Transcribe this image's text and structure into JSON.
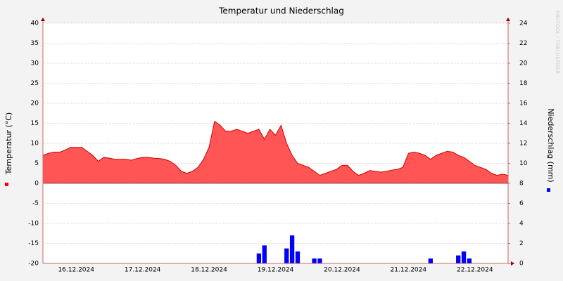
{
  "chart_data": {
    "type": "area",
    "title": "Temperatur und Niederschlag",
    "ylabel": "Temperatur (°C)",
    "y2label": "Niederschlag (mm)",
    "watermark": "RRDTOOL / TOBI OETIKER",
    "categories": [
      null,
      null,
      null,
      null,
      null,
      null,
      "16.12.2024",
      null,
      null,
      null,
      null,
      null,
      null,
      null,
      null,
      null,
      null,
      null,
      "17.12.2024",
      null,
      null,
      null,
      null,
      null,
      null,
      null,
      null,
      null,
      null,
      null,
      "18.12.2024",
      null,
      null,
      null,
      null,
      null,
      null,
      null,
      null,
      null,
      null,
      null,
      "19.12.2024",
      null,
      null,
      null,
      null,
      null,
      null,
      null,
      null,
      null,
      null,
      null,
      "20.12.2024",
      null,
      null,
      null,
      null,
      null,
      null,
      null,
      null,
      null,
      null,
      null,
      "21.12.2024",
      null,
      null,
      null,
      null,
      null,
      null,
      null,
      null,
      null,
      null,
      null,
      "22.12.2024",
      null,
      null,
      null,
      null,
      null,
      null
    ],
    "series": [
      {
        "type": "area",
        "axis": "y",
        "color": "#ff5555",
        "line_color": "#cc0000",
        "values": [
          7,
          7.5,
          7.8,
          7.8,
          8.3,
          9,
          9,
          9,
          8,
          7,
          5.5,
          6.5,
          6.3,
          6,
          6,
          6,
          5.8,
          6.2,
          6.5,
          6.5,
          6.3,
          6.2,
          6,
          5.5,
          4.5,
          3,
          2.5,
          3,
          4,
          6,
          9,
          15.5,
          14.5,
          13,
          13,
          13.5,
          13,
          12.5,
          13,
          13.5,
          11,
          13.5,
          12,
          14.5,
          10,
          7,
          5,
          4.5,
          4,
          3,
          2,
          2.5,
          3,
          3.5,
          4.5,
          4.5,
          3,
          2,
          2.5,
          3.2,
          3,
          2.8,
          3,
          3.3,
          3.5,
          4,
          7.5,
          7.8,
          7.5,
          7,
          6,
          7,
          7.5,
          8,
          7.8,
          7,
          6.5,
          5.5,
          4.5,
          4,
          3.5,
          2.5,
          2,
          2.3,
          2
        ]
      },
      {
        "type": "bar",
        "axis": "y2",
        "color": "#0000ff",
        "values": [
          0,
          0,
          0,
          0,
          0,
          0,
          0,
          0,
          0,
          0,
          0,
          0,
          0,
          0,
          0,
          0,
          0,
          0,
          0,
          0,
          0,
          0,
          0,
          0,
          0,
          0,
          0,
          0,
          0,
          0,
          0,
          0,
          0,
          0,
          0,
          0,
          0,
          0,
          0,
          1,
          1.8,
          0,
          0,
          0,
          1.5,
          2.8,
          1.2,
          0,
          0,
          0.5,
          0.5,
          0,
          0,
          0,
          0,
          0,
          0,
          0,
          0,
          0,
          0,
          0,
          0,
          0,
          0,
          0,
          0,
          0,
          0,
          0,
          0.5,
          0,
          0,
          0,
          0,
          0.8,
          1.2,
          0.5,
          0,
          0,
          0,
          0,
          0,
          0,
          0
        ]
      }
    ],
    "ylim": [
      -20,
      40
    ],
    "yticks": [
      -20,
      -15,
      -10,
      -5,
      0,
      5,
      10,
      15,
      20,
      25,
      30,
      35,
      40
    ],
    "y2lim": [
      0,
      24
    ],
    "y2ticks": [
      0,
      2,
      4,
      6,
      8,
      10,
      12,
      14,
      16,
      18,
      20,
      22,
      24
    ],
    "grid": true
  }
}
